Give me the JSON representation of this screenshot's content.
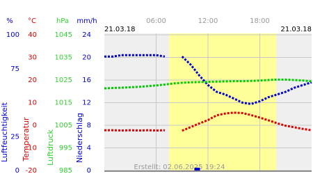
{
  "chart_data": {
    "type": "line",
    "date_left": "21.03.18",
    "date_right": "21.03.18",
    "footer": "Erstellt: 02.06.2025 19:24",
    "xlim": [
      0,
      24
    ],
    "xticks": [
      {
        "value": 6,
        "label": "06:00"
      },
      {
        "value": 12,
        "label": "12:00"
      },
      {
        "value": 18,
        "label": "18:00"
      }
    ],
    "daylight": [
      7.5,
      19.9
    ],
    "grid": true,
    "axes": [
      {
        "unit": "%",
        "title": "Luftfeuchtigkeit",
        "color": "#0000cc",
        "ylim": [
          0,
          100
        ],
        "yticks": [
          100,
          75,
          25,
          0
        ]
      },
      {
        "unit": "°C",
        "title": "Temperatur",
        "color": "#dd0000",
        "ylim": [
          -20,
          40
        ],
        "yticks": [
          40,
          30,
          20,
          10,
          0,
          -10,
          -20
        ]
      },
      {
        "unit": "hPa",
        "title": "Luftdruck",
        "color": "#33cc33",
        "ylim": [
          985,
          1045
        ],
        "yticks": [
          1045,
          1035,
          1025,
          1015,
          1005,
          995,
          985
        ]
      },
      {
        "unit": "mm/h",
        "title": "Niederschlag",
        "color": "#0000cc",
        "ylim": [
          0,
          24
        ],
        "yticks": [
          24,
          20,
          16,
          12,
          8,
          4,
          0
        ]
      }
    ],
    "x": [
      0,
      1,
      2,
      3,
      4,
      5,
      6,
      7,
      8,
      9,
      10,
      11,
      12,
      13,
      14,
      15,
      16,
      17,
      18,
      19,
      20,
      21,
      22,
      23,
      24
    ],
    "series": [
      {
        "axis": 0,
        "color": "#0000cc",
        "values": [
          84,
          84,
          85,
          85,
          85,
          85,
          85,
          84,
          null,
          84,
          78,
          70,
          63,
          58,
          56,
          53,
          50,
          49,
          51,
          54,
          56,
          58,
          61,
          63,
          65
        ]
      },
      {
        "axis": 1,
        "color": "#dd0000",
        "values": [
          -2.2,
          -2.2,
          -2.3,
          -2.2,
          -2.3,
          -2.2,
          -2.3,
          -2.2,
          null,
          -2.4,
          -0.8,
          0.8,
          2.3,
          4.4,
          5.2,
          5.6,
          5.4,
          4.5,
          3.4,
          2.2,
          0.9,
          -0.2,
          -0.9,
          -1.6,
          -2.2
        ]
      },
      {
        "axis": 2,
        "color": "#00cc00",
        "values": [
          1021.3,
          1021.5,
          1021.6,
          1021.8,
          1022.0,
          1022.3,
          1022.6,
          1023.0,
          1023.5,
          1023.8,
          1024.0,
          1024.1,
          1024.2,
          1024.3,
          1024.4,
          1024.5,
          1024.5,
          1024.6,
          1024.8,
          1025.0,
          1025.2,
          1025.2,
          1025.0,
          1024.8,
          1024.4
        ]
      },
      {
        "axis": 3,
        "type": "bar",
        "color": "#0000cc",
        "x": [
          10.75
        ],
        "values": [
          0.5
        ]
      }
    ]
  }
}
